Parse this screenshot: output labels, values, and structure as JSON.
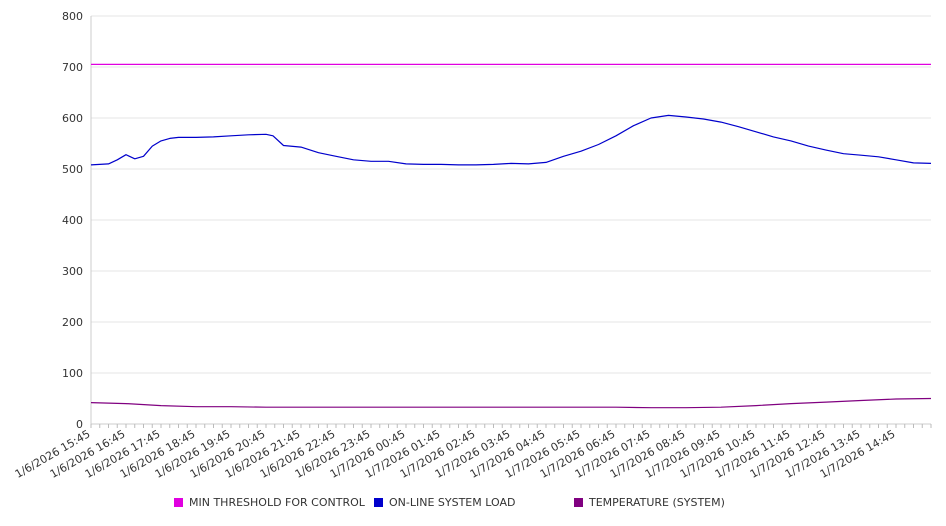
{
  "chart_data": {
    "type": "line",
    "ylim": [
      0,
      800
    ],
    "y_ticks": [
      "0",
      "100",
      "200",
      "300",
      "400",
      "500",
      "600",
      "700",
      "800"
    ],
    "x_tick_labels": [
      "1/6/2026 15:45",
      "1/6/2026 16:45",
      "1/6/2026 17:45",
      "1/6/2026 18:45",
      "1/6/2026 19:45",
      "1/6/2026 20:45",
      "1/6/2026 21:45",
      "1/6/2026 22:45",
      "1/6/2026 23:45",
      "1/7/2026 00:45",
      "1/7/2026 01:45",
      "1/7/2026 02:45",
      "1/7/2026 03:45",
      "1/7/2026 04:45",
      "1/7/2026 05:45",
      "1/7/2026 06:45",
      "1/7/2026 07:45",
      "1/7/2026 08:45",
      "1/7/2026 09:45",
      "1/7/2026 10:45",
      "1/7/2026 11:45",
      "1/7/2026 12:45",
      "1/7/2026 13:45",
      "1/7/2026 14:45"
    ],
    "x_range_hours": [
      0,
      24
    ],
    "grid": "horizontal",
    "legend_position": "bottom",
    "series": [
      {
        "name": "MIN THRESHOLD FOR CONTROL",
        "color": "#e000e0",
        "points": [
          [
            0,
            705
          ],
          [
            24,
            705
          ]
        ]
      },
      {
        "name": "ON-LINE SYSTEM LOAD",
        "color": "#0000cc",
        "points": [
          [
            0,
            508
          ],
          [
            0.5,
            510
          ],
          [
            0.75,
            518
          ],
          [
            1,
            528
          ],
          [
            1.25,
            520
          ],
          [
            1.5,
            525
          ],
          [
            1.75,
            545
          ],
          [
            2,
            555
          ],
          [
            2.25,
            560
          ],
          [
            2.5,
            562
          ],
          [
            3,
            562
          ],
          [
            3.5,
            563
          ],
          [
            4,
            565
          ],
          [
            4.5,
            567
          ],
          [
            5,
            568
          ],
          [
            5.2,
            565
          ],
          [
            5.5,
            546
          ],
          [
            6,
            543
          ],
          [
            6.5,
            532
          ],
          [
            7,
            525
          ],
          [
            7.5,
            518
          ],
          [
            8,
            515
          ],
          [
            8.5,
            515
          ],
          [
            9,
            510
          ],
          [
            9.5,
            509
          ],
          [
            10,
            509
          ],
          [
            10.5,
            508
          ],
          [
            11,
            508
          ],
          [
            11.5,
            509
          ],
          [
            12,
            511
          ],
          [
            12.5,
            510
          ],
          [
            13,
            513
          ],
          [
            13.5,
            525
          ],
          [
            14,
            535
          ],
          [
            14.5,
            548
          ],
          [
            15,
            565
          ],
          [
            15.5,
            585
          ],
          [
            16,
            600
          ],
          [
            16.5,
            605
          ],
          [
            17,
            602
          ],
          [
            17.5,
            598
          ],
          [
            18,
            592
          ],
          [
            18.5,
            583
          ],
          [
            19,
            573
          ],
          [
            19.5,
            563
          ],
          [
            20,
            555
          ],
          [
            20.5,
            545
          ],
          [
            21,
            537
          ],
          [
            21.5,
            530
          ],
          [
            22,
            527
          ],
          [
            22.5,
            524
          ],
          [
            23,
            518
          ],
          [
            23.5,
            512
          ],
          [
            24,
            511
          ]
        ]
      },
      {
        "name": "TEMPERATURE (SYSTEM)",
        "color": "#800080",
        "points": [
          [
            0,
            42
          ],
          [
            1,
            40
          ],
          [
            2,
            36
          ],
          [
            3,
            34
          ],
          [
            4,
            34
          ],
          [
            5,
            33
          ],
          [
            6,
            33
          ],
          [
            7,
            33
          ],
          [
            8,
            33
          ],
          [
            9,
            33
          ],
          [
            10,
            33
          ],
          [
            11,
            33
          ],
          [
            12,
            33
          ],
          [
            13,
            33
          ],
          [
            14,
            33
          ],
          [
            15,
            33
          ],
          [
            16,
            32
          ],
          [
            17,
            32
          ],
          [
            18,
            33
          ],
          [
            19,
            36
          ],
          [
            20,
            40
          ],
          [
            21,
            43
          ],
          [
            22,
            46
          ],
          [
            23,
            49
          ],
          [
            24,
            50
          ]
        ]
      }
    ]
  }
}
